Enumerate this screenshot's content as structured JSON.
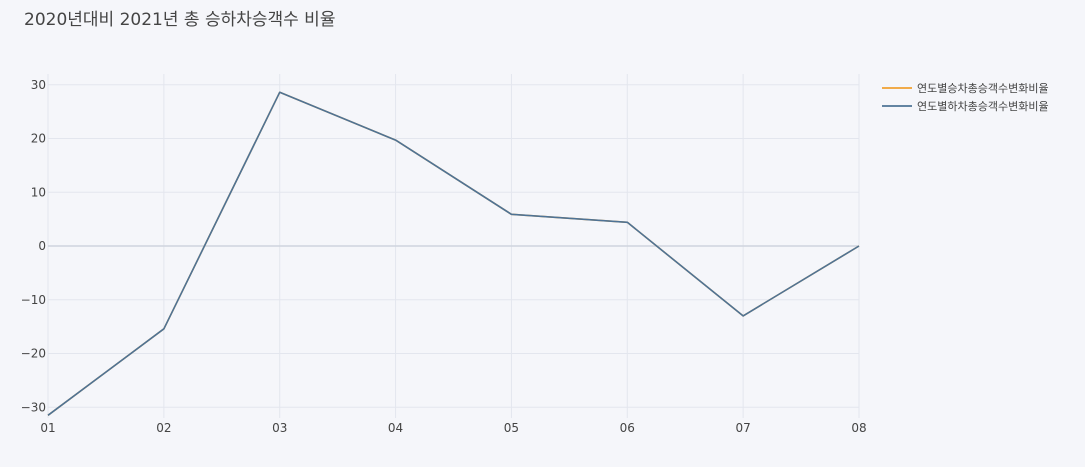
{
  "chart_data": {
    "type": "line",
    "title": "2020년대비 2021년 총 승하차승객수 비율",
    "xlabel": "",
    "ylabel": "",
    "categories": [
      "01",
      "02",
      "03",
      "04",
      "05",
      "06",
      "07",
      "08"
    ],
    "ylim": [
      -32,
      32
    ],
    "yticks": [
      -30,
      -20,
      -10,
      0,
      10,
      20,
      30
    ],
    "grid": true,
    "legend_position": "top-right",
    "series": [
      {
        "name": "연도별승차총승객수변화비율",
        "color": "#f0a030",
        "values": [
          -31.5,
          -15.4,
          28.6,
          19.7,
          5.9,
          4.4,
          -13.0,
          0.0
        ]
      },
      {
        "name": "연도별하차총승객수변화비율",
        "color": "#4e7396",
        "values": [
          -31.5,
          -15.4,
          28.6,
          19.7,
          5.9,
          4.4,
          -13.0,
          0.0
        ]
      }
    ]
  }
}
